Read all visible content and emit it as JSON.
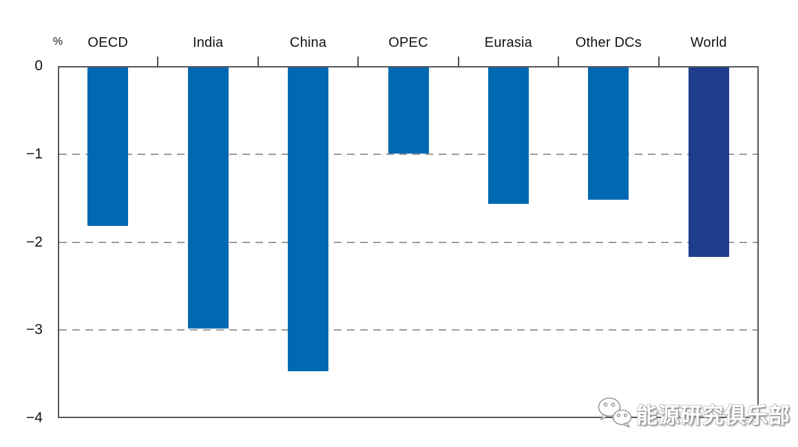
{
  "chart_data": {
    "type": "bar",
    "title": "",
    "unit_label": "%",
    "categories": [
      "OECD",
      "India",
      "China",
      "OPEC",
      "Eurasia",
      "Other DCs",
      "World"
    ],
    "values": [
      -1.8,
      -2.97,
      -3.45,
      -0.98,
      -1.55,
      -1.5,
      -2.15
    ],
    "bar_color": "#0069b1",
    "highlight_category": "World",
    "highlight_color": "#1f3d8c",
    "ylim": [
      -4,
      0
    ],
    "yticks": [
      0,
      -1,
      -2,
      -3,
      -4
    ],
    "ytick_labels": [
      "0",
      "−1",
      "−2",
      "−3",
      "−4"
    ],
    "gridlines": [
      -1,
      -2,
      -3
    ],
    "grid_style": "dashed horizontal gray",
    "legend_position": "none",
    "axis_color": "#55565a"
  },
  "watermark": {
    "text": "能源研究俱乐部",
    "icon": "wechat-icon"
  }
}
